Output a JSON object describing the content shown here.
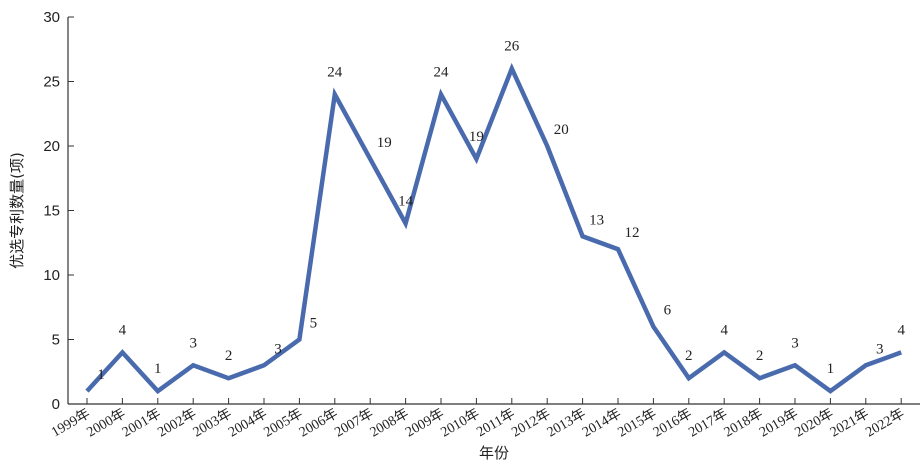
{
  "chart_data": {
    "type": "line",
    "title": "",
    "xlabel": "年份",
    "ylabel": "优选专利数量(项)",
    "ylim": [
      0,
      30
    ],
    "yticks": [
      0,
      5,
      10,
      15,
      20,
      25,
      30
    ],
    "categories": [
      "1999年",
      "2000年",
      "2001年",
      "2002年",
      "2003年",
      "2004年",
      "2005年",
      "2006年",
      "2007年",
      "2008年",
      "2009年",
      "2010年",
      "2011年",
      "2012年",
      "2013年",
      "2014年",
      "2015年",
      "2016年",
      "2017年",
      "2018年",
      "2019年",
      "2020年",
      "2021年",
      "2022年"
    ],
    "series": [
      {
        "values": [
          1,
          4,
          1,
          3,
          2,
          3,
          5,
          24,
          19,
          14,
          24,
          19,
          26,
          20,
          13,
          12,
          6,
          2,
          4,
          2,
          3,
          1,
          3,
          4
        ],
        "color": "#4a6aae"
      }
    ],
    "grid": false,
    "legend": "none"
  }
}
